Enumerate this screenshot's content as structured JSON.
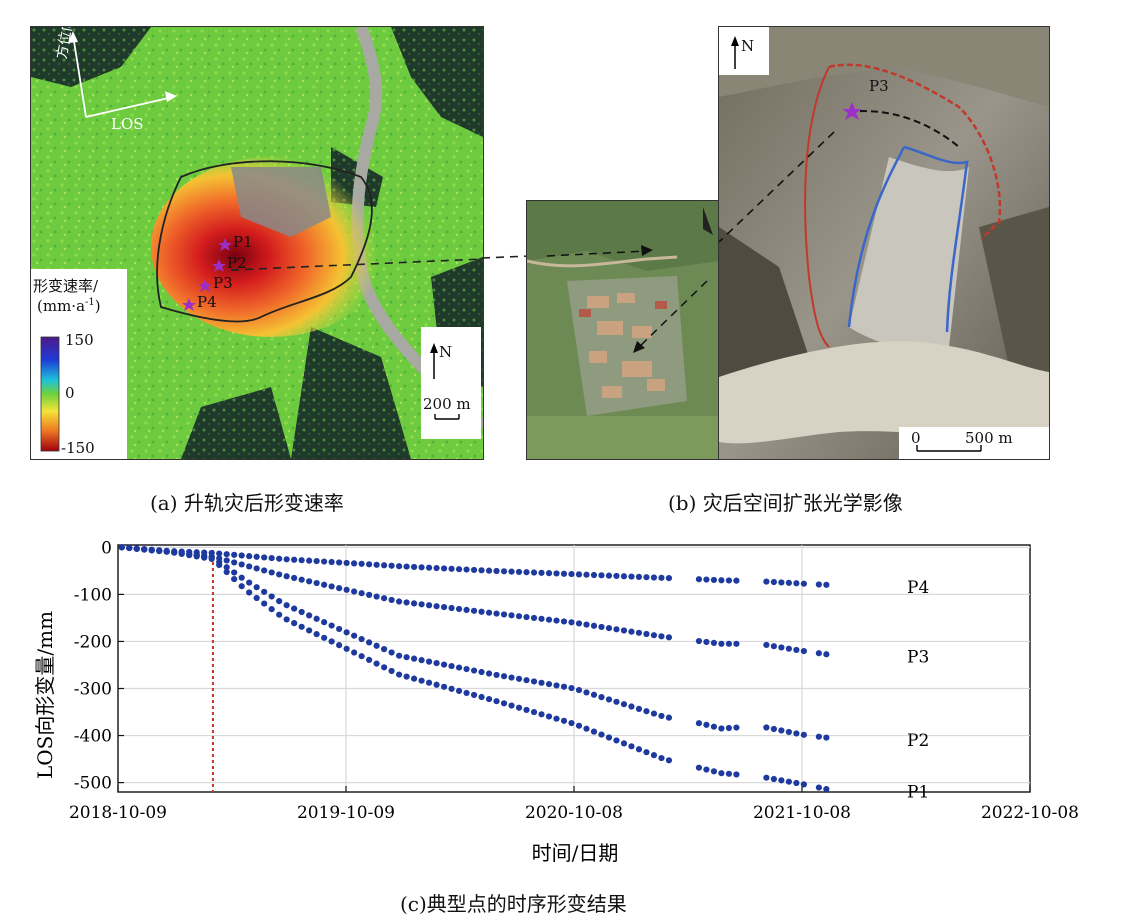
{
  "panel_a": {
    "caption": "(a) 升轨灾后形变速率",
    "los_label": "LOS",
    "azimuth_label": "方位向",
    "legend": {
      "title_line1": "形变速率/",
      "title_line2": "(mm·a",
      "title_sup": "-1",
      "title_close": ")",
      "max_label": "150",
      "mid_label": "0",
      "min_label": "-150"
    },
    "north_label": "N",
    "scale_label": "200 m",
    "points": [
      "P1",
      "P2",
      "P3",
      "P4"
    ]
  },
  "panel_b": {
    "caption": "(b) 灾后空间扩张光学影像",
    "north_label": "N",
    "point_label": "P3",
    "scale_zero": "0",
    "scale_label": "500 m"
  },
  "panel_c": {
    "caption": "(c)典型点的时序形变结果"
  },
  "colors": {
    "point_marker": "#9b30c8",
    "series": "#1f3a9e",
    "event_line": "#c0392b"
  },
  "chart_data": {
    "type": "scatter",
    "xlabel": "时间/日期",
    "ylabel": "LOS向形变量/mm",
    "x_ticks": [
      "2018-10-09",
      "2019-10-09",
      "2020-10-08",
      "2021-10-08",
      "2022-10-08"
    ],
    "y_ticks": [
      0,
      -100,
      -200,
      -300,
      -400,
      -500
    ],
    "xlim": [
      "2018-10-09",
      "2022-10-08"
    ],
    "ylim": [
      -520,
      5
    ],
    "grid": true,
    "event_line_date": "2019-03-10",
    "series": [
      {
        "name": "P4",
        "points": [
          [
            "2018-10-15",
            0
          ],
          [
            "2019-01-01",
            -8
          ],
          [
            "2019-03-10",
            -12
          ],
          [
            "2019-07-01",
            -25
          ],
          [
            "2019-10-09",
            -33
          ],
          [
            "2020-01-01",
            -40
          ],
          [
            "2020-06-01",
            -50
          ],
          [
            "2020-10-08",
            -57
          ],
          [
            "2021-03-01",
            -65
          ],
          [
            "2021-05-01",
            -68
          ],
          [
            "2021-06-01",
            -70
          ],
          [
            "2021-08-01",
            -72
          ],
          [
            "2021-10-08",
            -77
          ],
          [
            "2021-11-20",
            -80
          ]
        ]
      },
      {
        "name": "P3",
        "points": [
          [
            "2018-10-15",
            0
          ],
          [
            "2019-01-01",
            -10
          ],
          [
            "2019-03-10",
            -20
          ],
          [
            "2019-07-01",
            -60
          ],
          [
            "2019-10-09",
            -90
          ],
          [
            "2020-01-01",
            -115
          ],
          [
            "2020-06-01",
            -140
          ],
          [
            "2020-10-08",
            -160
          ],
          [
            "2021-03-01",
            -190
          ],
          [
            "2021-05-01",
            -200
          ],
          [
            "2021-06-01",
            -205
          ],
          [
            "2021-08-01",
            -205
          ],
          [
            "2021-10-08",
            -220
          ],
          [
            "2021-11-20",
            -228
          ]
        ]
      },
      {
        "name": "P2",
        "points": [
          [
            "2018-10-15",
            0
          ],
          [
            "2019-01-01",
            -10
          ],
          [
            "2019-03-10",
            -22
          ],
          [
            "2019-05-01",
            -70
          ],
          [
            "2019-07-01",
            -120
          ],
          [
            "2019-10-09",
            -180
          ],
          [
            "2020-01-01",
            -230
          ],
          [
            "2020-06-01",
            -270
          ],
          [
            "2020-10-08",
            -300
          ],
          [
            "2021-03-01",
            -360
          ],
          [
            "2021-05-01",
            -375
          ],
          [
            "2021-06-01",
            -385
          ],
          [
            "2021-08-01",
            -380
          ],
          [
            "2021-10-08",
            -398
          ],
          [
            "2021-11-20",
            -405
          ]
        ]
      },
      {
        "name": "P1",
        "points": [
          [
            "2018-10-15",
            0
          ],
          [
            "2019-01-01",
            -10
          ],
          [
            "2019-03-10",
            -25
          ],
          [
            "2019-05-01",
            -90
          ],
          [
            "2019-07-01",
            -150
          ],
          [
            "2019-10-09",
            -215
          ],
          [
            "2020-01-01",
            -270
          ],
          [
            "2020-06-01",
            -325
          ],
          [
            "2020-10-08",
            -375
          ],
          [
            "2021-03-01",
            -450
          ],
          [
            "2021-05-01",
            -470
          ],
          [
            "2021-06-01",
            -480
          ],
          [
            "2021-08-01",
            -487
          ],
          [
            "2021-10-08",
            -503
          ],
          [
            "2021-11-20",
            -515
          ]
        ]
      }
    ],
    "gaps": [
      [
        "2021-03-15",
        "2021-04-25"
      ],
      [
        "2021-06-25",
        "2021-08-01"
      ],
      [
        "2021-10-20",
        "2021-10-30"
      ]
    ]
  }
}
